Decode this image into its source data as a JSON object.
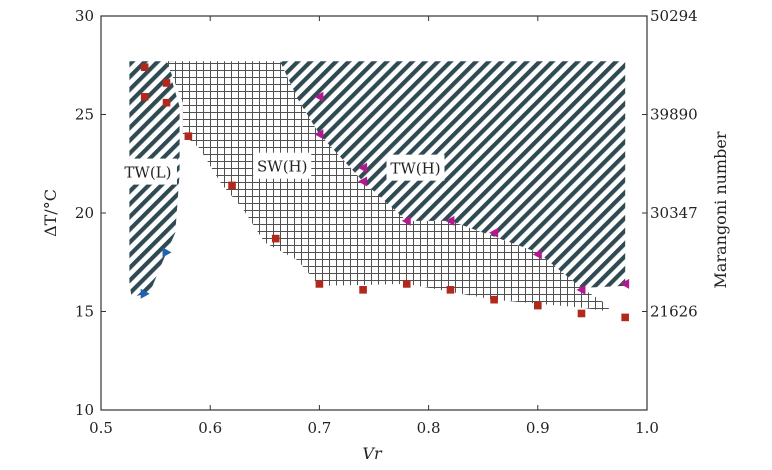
{
  "chart_data": {
    "type": "scatter",
    "xlabel": "Vr",
    "ylabel": "ΔT/°C",
    "y2label": "Marangoni number",
    "xlim": [
      0.5,
      1.0
    ],
    "ylim": [
      10,
      30
    ],
    "x_ticks": [
      "0.5",
      "0.6",
      "0.7",
      "0.8",
      "0.9",
      "1.0"
    ],
    "y_ticks": [
      "10",
      "15",
      "20",
      "25",
      "30"
    ],
    "y2_ticks": [
      {
        "value": 15,
        "label": "21626"
      },
      {
        "value": 20,
        "label": "30347"
      },
      {
        "value": 25,
        "label": "39890"
      },
      {
        "value": 30,
        "label": "50294"
      }
    ],
    "grid": false,
    "regions": [
      {
        "label": "TW(L)",
        "pattern": "diagonal-hatch",
        "label_at": [
          0.543,
          22.0
        ],
        "polygon": [
          [
            0.526,
            27.7
          ],
          [
            0.567,
            27.7
          ],
          [
            0.565,
            26.7
          ],
          [
            0.572,
            25.4
          ],
          [
            0.572,
            22.0
          ],
          [
            0.568,
            19.0
          ],
          [
            0.56,
            18.0
          ],
          [
            0.545,
            16.0
          ],
          [
            0.528,
            15.7
          ],
          [
            0.526,
            16.5
          ]
        ]
      },
      {
        "label": "SW(H)",
        "pattern": "grid",
        "label_at": [
          0.666,
          22.3
        ],
        "polygon": [
          [
            0.56,
            27.7
          ],
          [
            0.664,
            27.7
          ],
          [
            0.71,
            23.5
          ],
          [
            0.78,
            19.6
          ],
          [
            0.82,
            19.6
          ],
          [
            0.9,
            18.0
          ],
          [
            0.94,
            16.2
          ],
          [
            0.965,
            15.3
          ],
          [
            0.965,
            15.0
          ],
          [
            0.94,
            15.2
          ],
          [
            0.86,
            15.6
          ],
          [
            0.78,
            16.4
          ],
          [
            0.7,
            16.3
          ],
          [
            0.68,
            17.6
          ],
          [
            0.65,
            18.5
          ],
          [
            0.63,
            20.2
          ],
          [
            0.61,
            21.5
          ],
          [
            0.59,
            23.3
          ],
          [
            0.575,
            24.0
          ],
          [
            0.575,
            25.6
          ]
        ]
      },
      {
        "label": "TW(H)",
        "pattern": "diagonal-hatch",
        "label_at": [
          0.788,
          22.2
        ],
        "polygon": [
          [
            0.664,
            27.7
          ],
          [
            0.98,
            27.7
          ],
          [
            0.98,
            16.3
          ],
          [
            0.94,
            16.2
          ],
          [
            0.9,
            18.0
          ],
          [
            0.82,
            19.6
          ],
          [
            0.78,
            19.6
          ],
          [
            0.74,
            21.6
          ],
          [
            0.7,
            24.0
          ],
          [
            0.68,
            25.8
          ]
        ]
      }
    ],
    "series": [
      {
        "marker": "square",
        "color": "#b0291c",
        "points": [
          [
            0.54,
            27.4
          ],
          [
            0.54,
            25.9
          ],
          [
            0.56,
            26.6
          ],
          [
            0.56,
            25.6
          ],
          [
            0.58,
            23.9
          ],
          [
            0.62,
            21.4
          ],
          [
            0.66,
            18.7
          ],
          [
            0.7,
            16.4
          ],
          [
            0.74,
            16.1
          ],
          [
            0.78,
            16.4
          ],
          [
            0.82,
            16.1
          ],
          [
            0.86,
            15.6
          ],
          [
            0.9,
            15.3
          ],
          [
            0.94,
            14.9
          ],
          [
            0.98,
            14.7
          ]
        ]
      },
      {
        "marker": "triangle-left",
        "color": "#b3198e",
        "points": [
          [
            0.7,
            25.9
          ],
          [
            0.7,
            24.0
          ],
          [
            0.74,
            22.3
          ],
          [
            0.74,
            21.6
          ],
          [
            0.78,
            19.6
          ],
          [
            0.82,
            19.6
          ],
          [
            0.86,
            19.0
          ],
          [
            0.9,
            17.9
          ],
          [
            0.94,
            16.1
          ],
          [
            0.98,
            16.4
          ]
        ]
      },
      {
        "marker": "triangle-right",
        "color": "#1e62b0",
        "points": [
          [
            0.54,
            15.9
          ],
          [
            0.56,
            18.0
          ]
        ]
      }
    ]
  }
}
